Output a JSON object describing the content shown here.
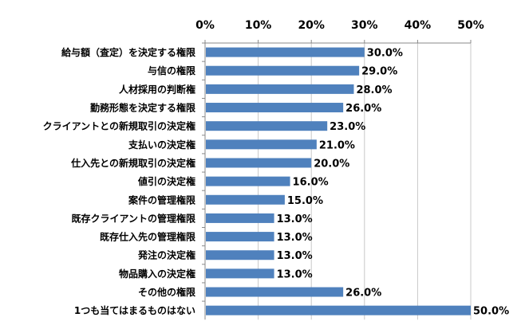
{
  "chart_data": {
    "type": "bar",
    "orientation": "horizontal",
    "categories": [
      "給与額（査定）を決定する権限",
      "与信の権限",
      "人材採用の判断権",
      "勤務形態を決定する権限",
      "クライアントとの新規取引の決定権",
      "支払いの決定権",
      "仕入先との新規取引の決定権",
      "値引の決定権",
      "案件の管理権限",
      "既存クライアントの管理権限",
      "既存仕入先の管理権限",
      "発注の決定権",
      "物品購入の決定権",
      "その他の権限",
      "1つも当てはまるものはない"
    ],
    "values": [
      30.0,
      29.0,
      28.0,
      26.0,
      23.0,
      21.0,
      20.0,
      16.0,
      15.0,
      13.0,
      13.0,
      13.0,
      13.0,
      26.0,
      50.0
    ],
    "data_labels": [
      "30.0%",
      "29.0%",
      "28.0%",
      "26.0%",
      "23.0%",
      "21.0%",
      "20.0%",
      "16.0%",
      "15.0%",
      "13.0%",
      "13.0%",
      "13.0%",
      "13.0%",
      "26.0%",
      "50.0%"
    ],
    "xlim": [
      0,
      50
    ],
    "xticks": [
      "0%",
      "10%",
      "20%",
      "30%",
      "40%",
      "50%"
    ],
    "x_axis_position": "top",
    "grid": true,
    "bar_color": "#4F81BD",
    "title": "",
    "xlabel": "",
    "ylabel": ""
  }
}
